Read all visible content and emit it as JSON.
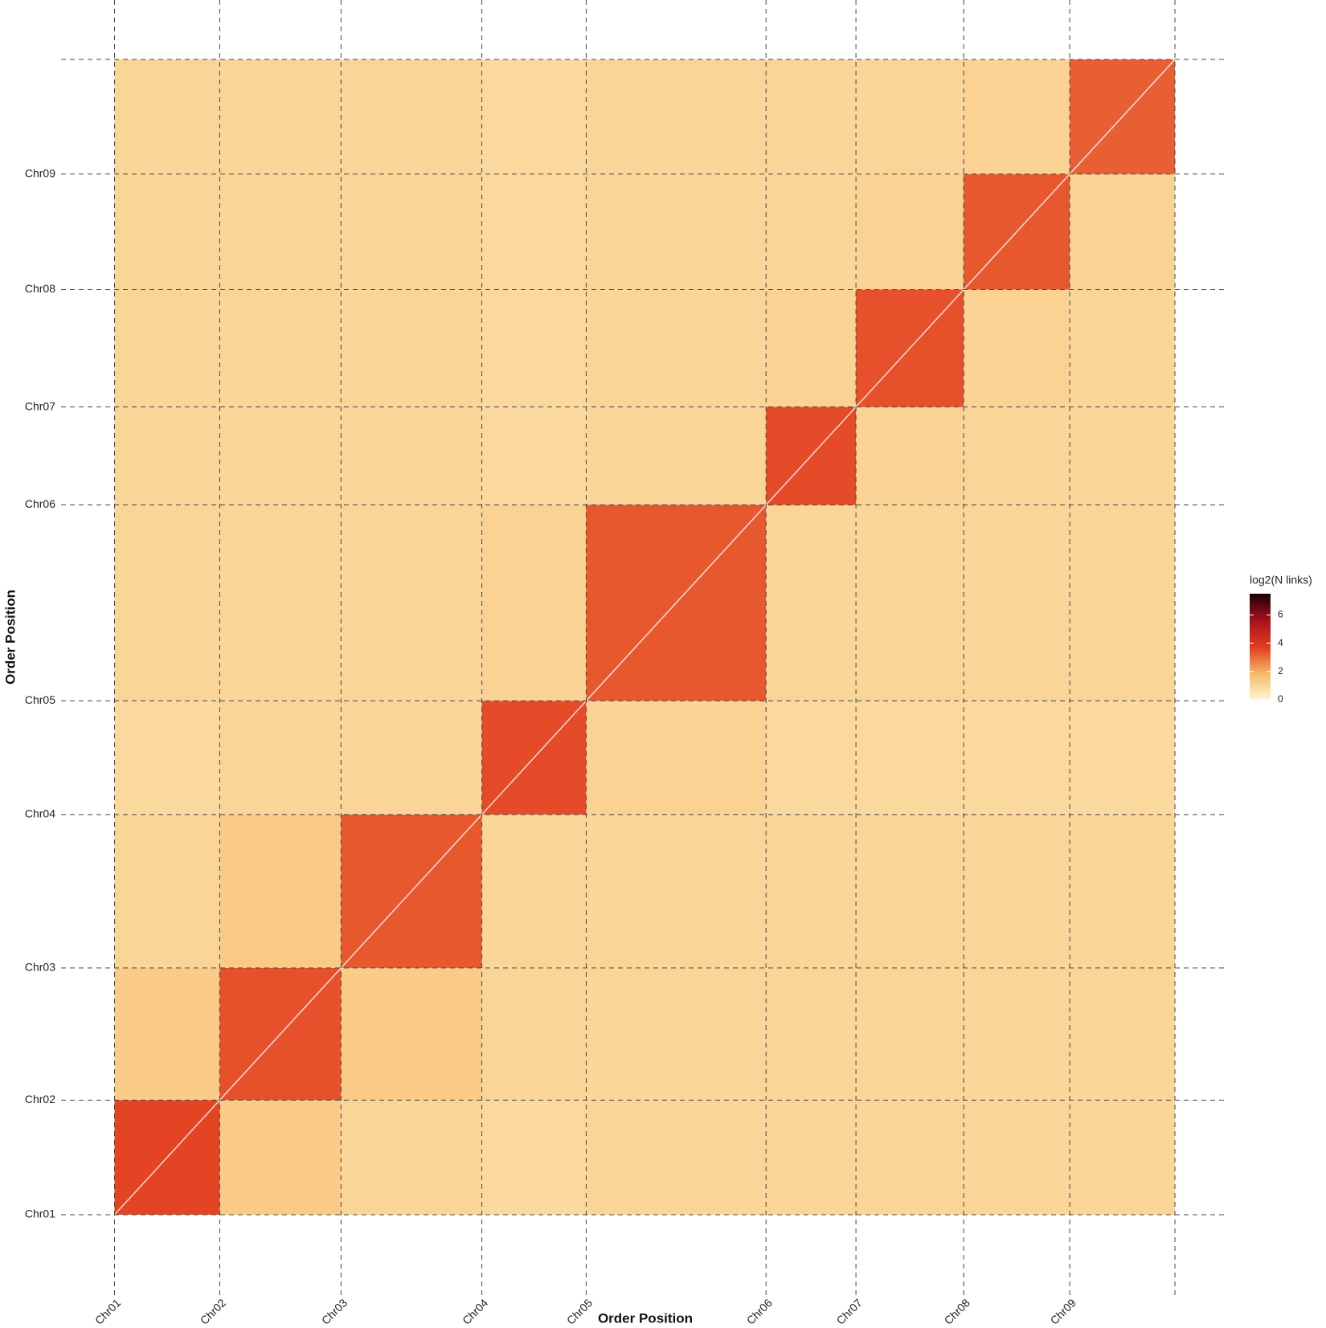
{
  "chart_data": {
    "type": "heatmap",
    "x_label": "Order Position",
    "y_label": "Order Position",
    "categories": [
      "Chr01",
      "Chr02",
      "Chr03",
      "Chr04",
      "Chr05",
      "Chr06",
      "Chr07",
      "Chr08",
      "Chr09",
      null
    ],
    "boundaries": [
      0,
      124,
      267,
      433,
      556,
      768,
      874,
      1001,
      1126,
      1250
    ],
    "xlim": [
      0,
      1250
    ],
    "ylim": [
      0,
      1250
    ],
    "values": [
      [
        3.6,
        1.3,
        1.0,
        0.9,
        1.0,
        1.0,
        1.0,
        1.0,
        1.0
      ],
      [
        1.3,
        3.4,
        1.3,
        1.0,
        1.0,
        1.0,
        1.0,
        1.0,
        1.0
      ],
      [
        1.0,
        1.3,
        3.3,
        1.0,
        1.0,
        1.0,
        1.0,
        1.0,
        1.0
      ],
      [
        0.9,
        1.0,
        1.0,
        3.5,
        1.1,
        0.9,
        0.9,
        0.9,
        0.9
      ],
      [
        1.0,
        1.0,
        1.0,
        1.1,
        3.3,
        1.0,
        1.0,
        1.0,
        1.0
      ],
      [
        1.0,
        1.0,
        1.0,
        0.9,
        1.0,
        3.5,
        1.1,
        1.0,
        1.0
      ],
      [
        1.0,
        1.0,
        1.0,
        0.9,
        1.0,
        1.1,
        3.4,
        1.1,
        1.0
      ],
      [
        1.0,
        1.0,
        1.0,
        0.9,
        1.0,
        1.0,
        1.1,
        3.3,
        1.1
      ],
      [
        1.0,
        1.0,
        1.0,
        0.9,
        1.0,
        1.0,
        1.0,
        1.1,
        3.2
      ]
    ],
    "colorbar_title": "log2(N links)",
    "clim": [
      0,
      7.5
    ],
    "cticks": [
      0,
      2,
      4,
      6
    ],
    "colorscale": [
      "#fff8d2",
      "#f6b766",
      "#e23a1e",
      "#a8101c",
      "#1a0008"
    ],
    "grid": true
  }
}
